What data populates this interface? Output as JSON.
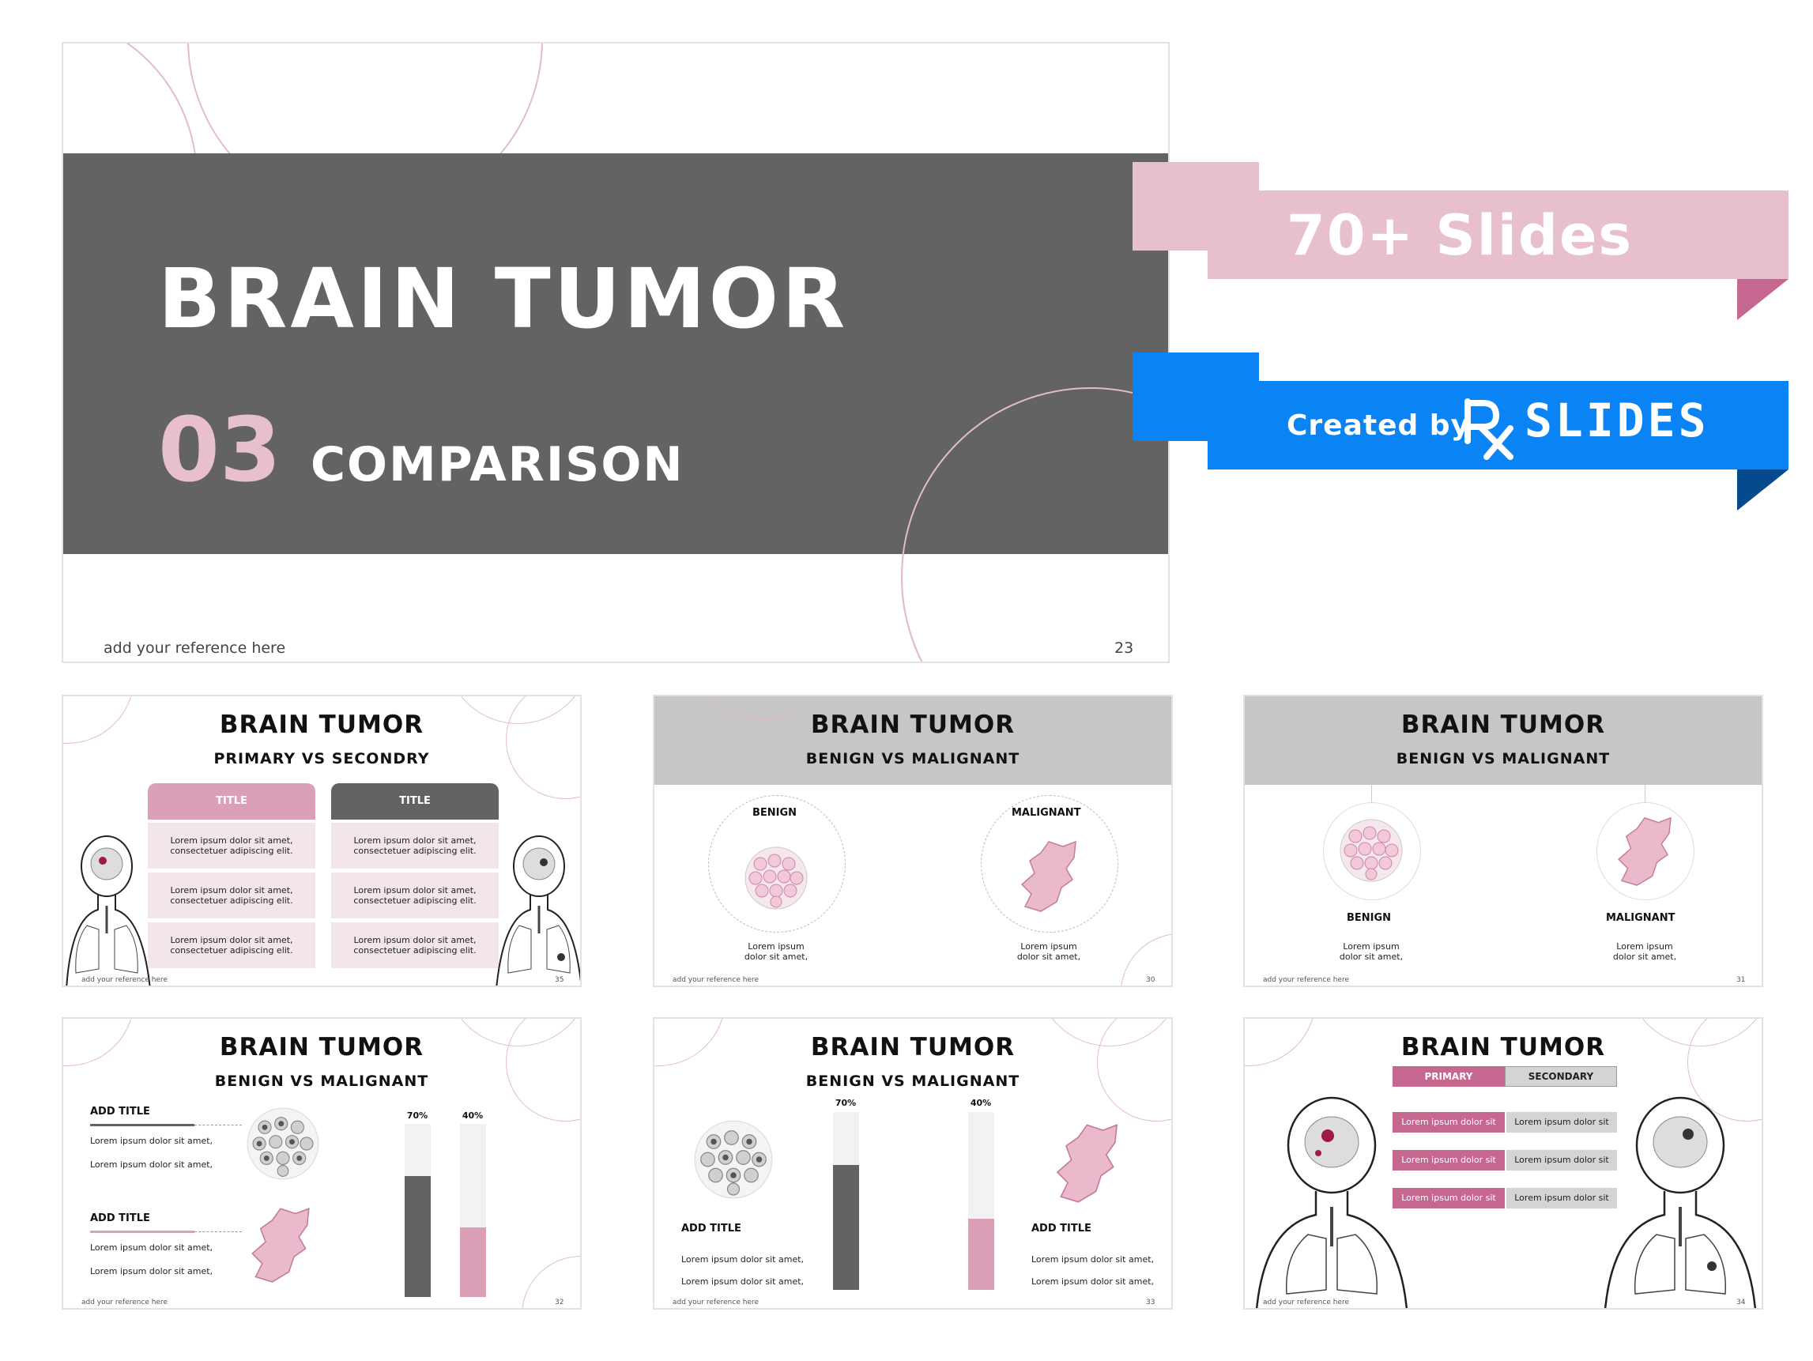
{
  "main_slide": {
    "title": "BRAIN TUMOR",
    "number": "03",
    "subtitle": "COMPARISON",
    "reference": "add your reference here",
    "page": "23"
  },
  "banner_slides": {
    "text": "70+ Slides"
  },
  "banner_created": {
    "text": "Created by",
    "brand": "SLIDES",
    "logo_letters": "Rx"
  },
  "slide35": {
    "title": "BRAIN TUMOR",
    "subtitle": "PRIMARY VS SECONDRY",
    "col1_header": "TITLE",
    "col2_header": "TITLE",
    "cell_text_1": "Lorem ipsum dolor sit amet,",
    "cell_text_2": "consectetuer adipiscing elit.",
    "reference": "add your reference here",
    "page": "35"
  },
  "slide30": {
    "title": "BRAIN TUMOR",
    "subtitle": "BENIGN VS MALIGNANT",
    "left_label": "BENIGN",
    "right_label": "MALIGNANT",
    "caption_1": "Lorem ipsum",
    "caption_2": "dolor sit amet,",
    "reference": "add your reference here",
    "page": "30"
  },
  "slide31": {
    "title": "BRAIN TUMOR",
    "subtitle": "BENIGN VS MALIGNANT",
    "left_label": "BENIGN",
    "right_label": "MALIGNANT",
    "caption_1": "Lorem ipsum",
    "caption_2": "dolor sit amet,",
    "reference": "add your reference here",
    "page": "31"
  },
  "slide32": {
    "title": "BRAIN TUMOR",
    "subtitle": "BENIGN VS MALIGNANT",
    "add_title": "ADD TITLE",
    "line": "Lorem ipsum dolor sit amet,",
    "bar1_label": "70%",
    "bar2_label": "40%",
    "reference": "add your reference here",
    "page": "32"
  },
  "slide33": {
    "title": "BRAIN TUMOR",
    "subtitle": "BENIGN VS MALIGNANT",
    "add_title": "ADD TITLE",
    "line": "Lorem ipsum dolor sit amet,",
    "bar1_label": "70%",
    "bar2_label": "40%",
    "reference": "add your reference here",
    "page": "33"
  },
  "slide34": {
    "title": "BRAIN TUMOR",
    "tab_primary": "PRIMARY",
    "tab_secondary": "SECONDARY",
    "row_text": "Lorem ipsum dolor sit",
    "reference": "add your reference here",
    "page": "34"
  },
  "chart_data": [
    {
      "type": "bar",
      "categories": [
        "70%",
        "40%"
      ],
      "values": [
        70,
        40
      ],
      "ylim": [
        0,
        100
      ]
    }
  ],
  "colors": {
    "pink": "#e8bfcf",
    "pink_dark": "#c6678f",
    "gray": "#636363",
    "blue": "#0a84f5",
    "blue_dark": "#044a8c"
  }
}
